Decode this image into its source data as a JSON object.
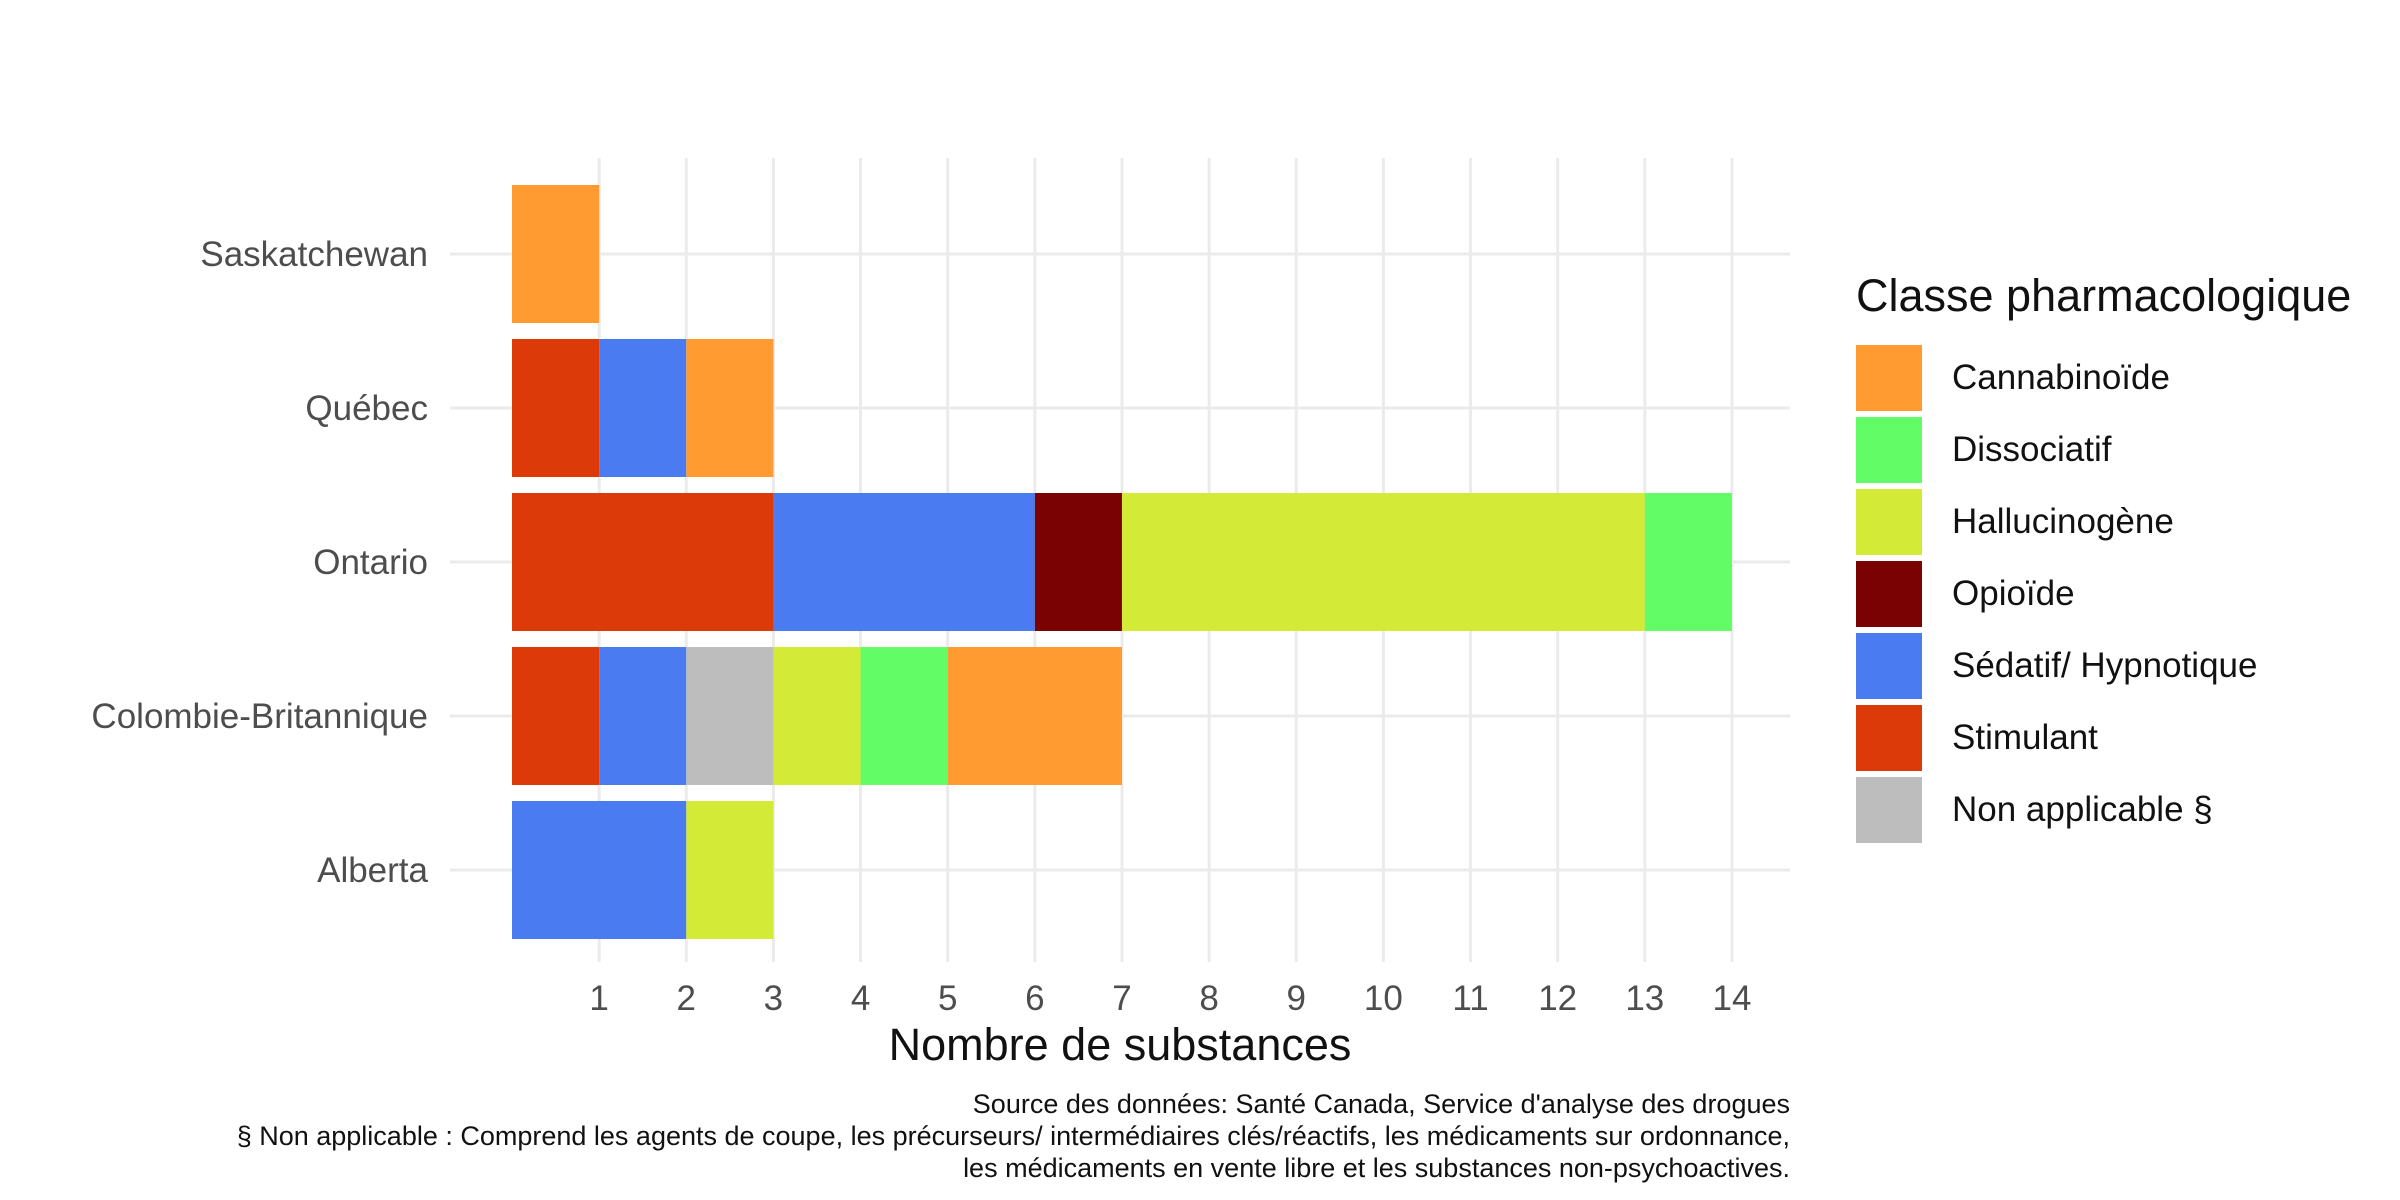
{
  "chart_data": {
    "type": "bar",
    "orientation": "horizontal",
    "stacked": true,
    "categories": [
      "Alberta",
      "Colombie-Britannique",
      "Ontario",
      "Québec",
      "Saskatchewan"
    ],
    "series": [
      {
        "name": "Stimulant",
        "color": "#DC3A09",
        "values": [
          0,
          1,
          3,
          1,
          0
        ]
      },
      {
        "name": "Sédatif/ Hypnotique",
        "color": "#4A7BF0",
        "values": [
          2,
          1,
          3,
          1,
          0
        ]
      },
      {
        "name": "Non applicable §",
        "color": "#BDBDBD",
        "values": [
          0,
          1,
          0,
          0,
          0
        ]
      },
      {
        "name": "Opioïde",
        "color": "#7A0202",
        "values": [
          0,
          0,
          1,
          0,
          0
        ]
      },
      {
        "name": "Hallucinogène",
        "color": "#D3EA36",
        "values": [
          1,
          1,
          6,
          0,
          0
        ]
      },
      {
        "name": "Dissociatif",
        "color": "#62FD66",
        "values": [
          0,
          1,
          1,
          0,
          0
        ]
      },
      {
        "name": "Cannabinoïde",
        "color": "#FF9B30",
        "values": [
          0,
          2,
          0,
          1,
          1
        ]
      }
    ],
    "xlabel": "Nombre de substances",
    "ylabel": "",
    "xlim": [
      0,
      14
    ],
    "xticks": [
      1,
      2,
      3,
      4,
      5,
      6,
      7,
      8,
      9,
      10,
      11,
      12,
      13,
      14
    ],
    "grid": true,
    "legend": {
      "position": "right",
      "title": "Classe pharmacologique",
      "order": [
        "Cannabinoïde",
        "Dissociatif",
        "Hallucinogène",
        "Opioïde",
        "Sédatif/ Hypnotique",
        "Stimulant",
        "Non applicable §"
      ]
    }
  },
  "caption": {
    "line1": "Source des données: Santé Canada, Service d'analyse des drogues",
    "line2": "§ Non applicable : Comprend les agents de coupe, les précurseurs/ intermédiaires clés/réactifs, les médicaments sur ordonnance,",
    "line3": "les médicaments en vente libre et les substances non-psychoactives."
  }
}
